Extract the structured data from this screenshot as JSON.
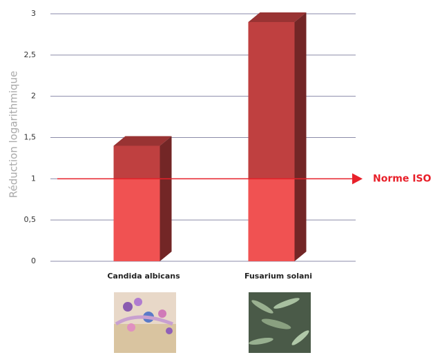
{
  "chart_data": {
    "type": "bar3d",
    "y_label": "Réduction logarithmique",
    "categories": [
      "Candida albicans",
      "Fusarium solani"
    ],
    "values": [
      1.4,
      2.9
    ],
    "color": "#bf4040",
    "ylim": [
      0,
      3
    ],
    "yticks": [
      0,
      {
        "value": 0.5,
        "label": "0,5"
      },
      1,
      {
        "value": 1.5,
        "label": "1,5"
      },
      2,
      {
        "value": 2.5,
        "label": "2,5"
      },
      3
    ],
    "grid": true,
    "reference": {
      "value": 1,
      "label": "Norme ISO",
      "color": "#e8202a",
      "fill": "#f05252"
    }
  }
}
